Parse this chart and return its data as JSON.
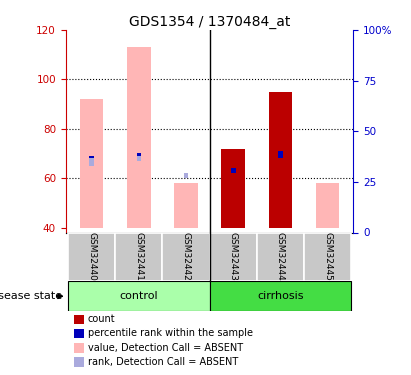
{
  "title": "GDS1354 / 1370484_at",
  "samples": [
    "GSM32440",
    "GSM32441",
    "GSM32442",
    "GSM32443",
    "GSM32444",
    "GSM32445"
  ],
  "ylim_left": [
    38,
    120
  ],
  "ylim_right": [
    0,
    100
  ],
  "yticks_left": [
    40,
    60,
    80,
    100,
    120
  ],
  "yticks_right": [
    0,
    25,
    50,
    75,
    100
  ],
  "yticklabels_right": [
    "0",
    "25",
    "50",
    "75",
    "100%"
  ],
  "pink_bars_top": [
    92,
    113,
    58,
    72,
    95,
    58
  ],
  "red_bars_top": [
    0,
    0,
    0,
    72,
    95,
    0
  ],
  "blue_dark_y": [
    67,
    68,
    0,
    62,
    68,
    0
  ],
  "blue_dark_h": [
    2,
    2,
    0,
    2,
    3,
    0
  ],
  "blue_light_y": [
    65,
    67,
    60,
    0,
    0,
    0
  ],
  "blue_light_h": [
    3,
    2,
    2,
    0,
    0,
    0
  ],
  "bar_bottom": 40,
  "bar_width": 0.5,
  "pink_color": "#ffb6b6",
  "red_color": "#bb0000",
  "blue_dark_color": "#0000bb",
  "blue_light_color": "#aaaadd",
  "control_color": "#aaffaa",
  "cirrhosis_color": "#44dd44",
  "left_axis_color": "#cc0000",
  "right_axis_color": "#0000cc",
  "grid_dotted_at": [
    60,
    80,
    100
  ],
  "legend_labels": [
    "count",
    "percentile rank within the sample",
    "value, Detection Call = ABSENT",
    "rank, Detection Call = ABSENT"
  ],
  "legend_colors": [
    "#bb0000",
    "#0000bb",
    "#ffb6b6",
    "#aaaadd"
  ]
}
